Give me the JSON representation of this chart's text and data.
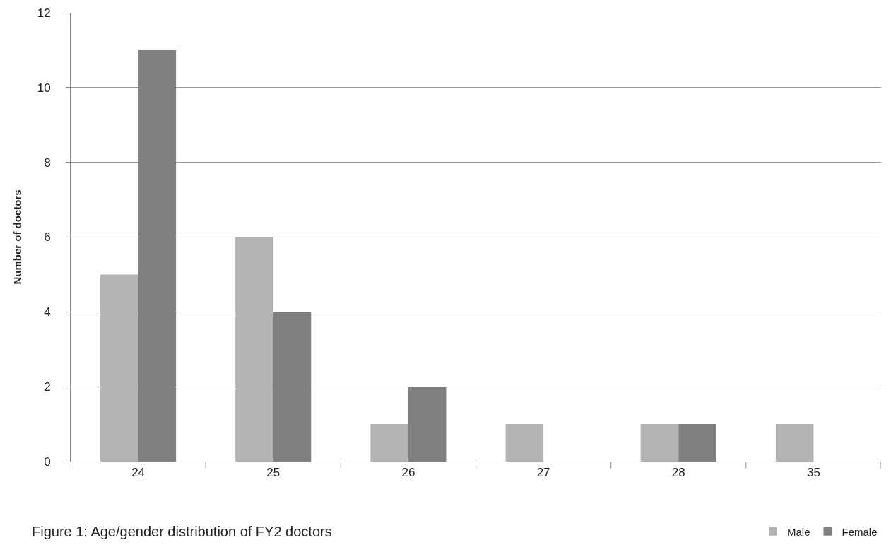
{
  "chart_data": {
    "type": "bar",
    "title": "Figure 1: Age/gender distribution of FY2 doctors",
    "ylabel": "Number of doctors",
    "categories": [
      "24",
      "25",
      "26",
      "27",
      "28",
      "35"
    ],
    "series": [
      {
        "name": "Male",
        "color": "#b3b3b3",
        "values": [
          5,
          6,
          1,
          1,
          1,
          1
        ]
      },
      {
        "name": "Female",
        "color": "#808080",
        "values": [
          11,
          4,
          2,
          0,
          1,
          0
        ]
      }
    ],
    "ylim": [
      0,
      12
    ],
    "yticks": [
      0,
      2,
      4,
      6,
      8,
      10,
      12
    ],
    "grid": "y",
    "legend": "bottom right"
  }
}
